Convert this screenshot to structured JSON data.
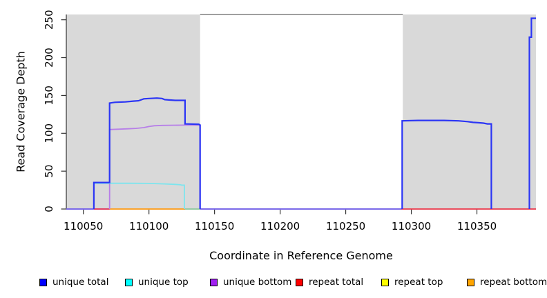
{
  "chart_data": {
    "type": "line",
    "title": "",
    "xlabel": "Coordinate in Reference Genome",
    "ylabel": "Read Coverage Depth",
    "xlim": [
      110037,
      110395
    ],
    "ylim": [
      0,
      257
    ],
    "x_ticks": [
      110050,
      110100,
      110150,
      110200,
      110250,
      110300,
      110350
    ],
    "y_ticks": [
      0,
      50,
      100,
      150,
      200,
      250
    ],
    "grid": false,
    "legend_position": "bottom",
    "background": "#ffffff",
    "shaded_region_color": "#d9d9d9",
    "shaded_regions": [
      {
        "name": "left-shaded-region",
        "x0": 110037,
        "x1": 110139
      },
      {
        "name": "right-shaded-region",
        "x0": 110293.5,
        "x1": 110395
      }
    ],
    "series": [
      {
        "name": "baseline-overlap-blue-purple",
        "color": "#7a68e8",
        "width": 2,
        "paths": [
          [
            [
              110037,
              0
            ],
            [
              110293,
              0
            ]
          ]
        ]
      },
      {
        "name": "repeat total",
        "color": "#ef3b4e",
        "width": 1.8,
        "paths": [
          [
            [
              110058,
              0
            ],
            [
              110070,
              0
            ]
          ],
          [
            [
              110292.5,
              0
            ],
            [
              110395,
              0
            ]
          ]
        ]
      },
      {
        "name": "repeat top",
        "color": "#f5e52a",
        "width": 1.8,
        "paths": [
          [
            [
              110070,
              0
            ],
            [
              110127,
              0
            ]
          ]
        ]
      },
      {
        "name": "repeat bottom",
        "color": "#ff9d26",
        "width": 1.8,
        "paths": [
          [
            [
              110070,
              0
            ],
            [
              110127.5,
              0
            ]
          ]
        ]
      },
      {
        "name": "baseline-overlap-green",
        "color": "#99d999",
        "width": 1.8,
        "paths": [
          [
            [
              110127.5,
              0
            ],
            [
              110139,
              0
            ]
          ]
        ]
      },
      {
        "name": "unique bottom",
        "color": "#b77fe8",
        "width": 1.8,
        "paths": [
          [
            [
              110070,
              0
            ],
            [
              110070,
              105
            ],
            [
              110078,
              105.5
            ],
            [
              110084,
              106
            ],
            [
              110090,
              106.5
            ],
            [
              110096,
              107.5
            ],
            [
              110100,
              109
            ],
            [
              110104,
              110
            ],
            [
              110110,
              110.5
            ],
            [
              110126,
              110.8
            ],
            [
              110139,
              110.8
            ],
            [
              110139,
              0
            ]
          ]
        ]
      },
      {
        "name": "unique top",
        "color": "#7ce5ee",
        "width": 1.8,
        "paths": [
          [
            [
              110058,
              0
            ],
            [
              110058,
              34
            ],
            [
              110085,
              34
            ],
            [
              110100,
              33.8
            ],
            [
              110112,
              33.2
            ],
            [
              110120,
              32.5
            ],
            [
              110124,
              32
            ],
            [
              110125,
              31.5
            ],
            [
              110127,
              31.5
            ],
            [
              110127,
              0
            ]
          ]
        ]
      },
      {
        "name": "unique total",
        "color": "#2b35f5",
        "width": 2.2,
        "paths": [
          [
            [
              110058,
              0
            ],
            [
              110058,
              35
            ],
            [
              110070,
              35
            ],
            [
              110070,
              140
            ],
            [
              110074,
              141
            ],
            [
              110082,
              141.5
            ],
            [
              110088,
              142.5
            ],
            [
              110092,
              143
            ],
            [
              110096,
              145.5
            ],
            [
              110100,
              146
            ],
            [
              110106,
              146.5
            ],
            [
              110110,
              146
            ],
            [
              110112,
              144.5
            ],
            [
              110116,
              144
            ],
            [
              110120,
              143.5
            ],
            [
              110127.5,
              143.5
            ],
            [
              110127.5,
              112.5
            ],
            [
              110138,
              112
            ],
            [
              110139,
              111
            ],
            [
              110139,
              0
            ]
          ],
          [
            [
              110293,
              0
            ],
            [
              110293,
              116.5
            ],
            [
              110305,
              117
            ],
            [
              110325,
              117
            ],
            [
              110336,
              116.5
            ],
            [
              110343,
              115.5
            ],
            [
              110347,
              114.5
            ],
            [
              110351,
              114
            ],
            [
              110355,
              113.5
            ],
            [
              110358,
              112.5
            ],
            [
              110361,
              112.5
            ],
            [
              110361,
              0
            ]
          ],
          [
            [
              110390,
              0
            ],
            [
              110390,
              227
            ],
            [
              110391.5,
              227
            ],
            [
              110391.5,
              252
            ],
            [
              110395,
              252
            ]
          ]
        ]
      }
    ],
    "legend": [
      {
        "label": "unique total",
        "color": "#0000ff"
      },
      {
        "label": "unique top",
        "color": "#00ffff"
      },
      {
        "label": "unique bottom",
        "color": "#a020f0"
      },
      {
        "label": "repeat total",
        "color": "#ff0000"
      },
      {
        "label": "repeat top",
        "color": "#ffff00"
      },
      {
        "label": "repeat bottom",
        "color": "#ffa500"
      }
    ]
  }
}
